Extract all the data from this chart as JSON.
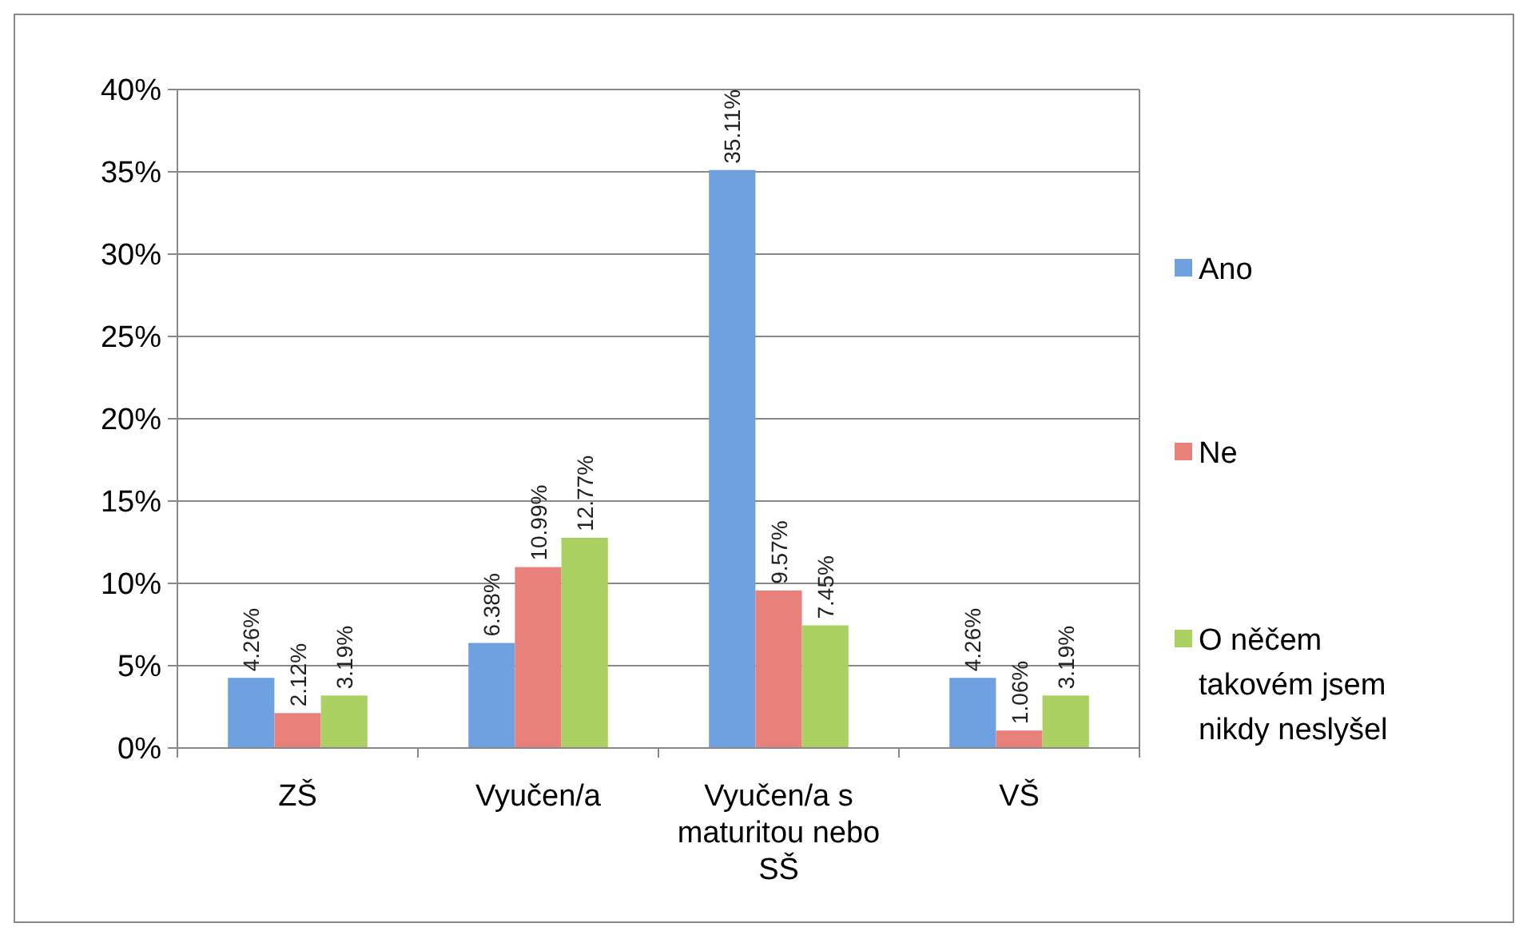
{
  "chart_data": {
    "type": "bar",
    "categories": [
      "ZŠ",
      "Vyučen/a",
      "Vyučen/a s maturitou nebo SŠ",
      "VŠ"
    ],
    "series": [
      {
        "name": "Ano",
        "color": "#6fa0e0",
        "values": [
          4.26,
          6.38,
          35.11,
          4.26
        ],
        "value_labels": [
          "4.26%",
          "6.38%",
          "35.11%",
          "4.26%"
        ]
      },
      {
        "name": "Ne",
        "color": "#e8807c",
        "values": [
          2.12,
          10.99,
          9.57,
          1.06
        ],
        "value_labels": [
          "2.12%",
          "10.99%",
          "9.57%",
          "1.06%"
        ]
      },
      {
        "name": "O něčem takovém jsem nikdy neslyšel",
        "color": "#aad162",
        "values": [
          3.19,
          12.77,
          7.45,
          3.19
        ],
        "value_labels": [
          "3.19%",
          "12.77%",
          "7.45%",
          "3.19%"
        ]
      }
    ],
    "ylim": [
      0,
      40
    ],
    "yticks": [
      {
        "value": 0,
        "label": "0%"
      },
      {
        "value": 5,
        "label": "5%"
      },
      {
        "value": 10,
        "label": "10%"
      },
      {
        "value": 15,
        "label": "15%"
      },
      {
        "value": 20,
        "label": "20%"
      },
      {
        "value": 25,
        "label": "25%"
      },
      {
        "value": 30,
        "label": "30%"
      },
      {
        "value": 35,
        "label": "35%"
      },
      {
        "value": 40,
        "label": "40%"
      }
    ],
    "grid": "y",
    "legend": "right"
  }
}
